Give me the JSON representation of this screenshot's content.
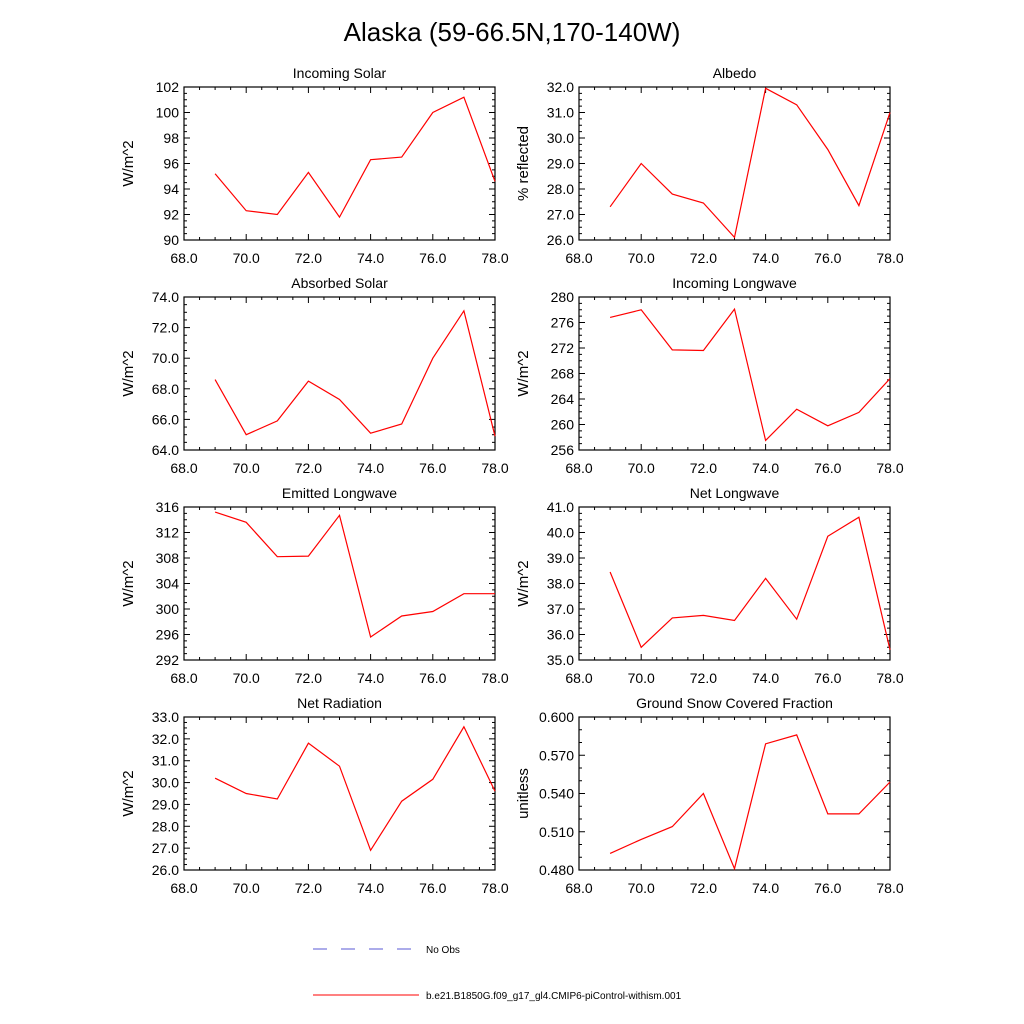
{
  "figure_title": "Alaska (59-66.5N,170-140W)",
  "legend": {
    "no_obs_label": "No Obs",
    "model_label": "b.e21.B1850G.f09_g17_gl4.CMIP6-piControl-withism.001",
    "no_obs_color": "#5a5ad6",
    "model_color": "#ff0000"
  },
  "chart_data": [
    {
      "type": "line",
      "title": "Incoming Solar",
      "ylabel": "W/m^2",
      "xlim": [
        68,
        78
      ],
      "ylim": [
        90,
        102
      ],
      "xticks": [
        "68.0",
        "70.0",
        "72.0",
        "74.0",
        "76.0",
        "78.0"
      ],
      "yticks": [
        "90",
        "92",
        "94",
        "96",
        "98",
        "100",
        "102"
      ],
      "series": [
        {
          "color": "#ff0000",
          "x": [
            69,
            70,
            71,
            72,
            73,
            74,
            75,
            76,
            77,
            78
          ],
          "y": [
            95.2,
            92.3,
            92.0,
            95.3,
            91.8,
            96.3,
            96.5,
            100.0,
            101.2,
            94.6
          ]
        }
      ]
    },
    {
      "type": "line",
      "title": "Albedo",
      "ylabel": "% reflected",
      "xlim": [
        68,
        78
      ],
      "ylim": [
        26,
        32
      ],
      "xticks": [
        "68.0",
        "70.0",
        "72.0",
        "74.0",
        "76.0",
        "78.0"
      ],
      "yticks": [
        "26.0",
        "27.0",
        "28.0",
        "29.0",
        "30.0",
        "31.0",
        "32.0"
      ],
      "series": [
        {
          "color": "#ff0000",
          "x": [
            69,
            70,
            71,
            72,
            73,
            74,
            75,
            76,
            77,
            78
          ],
          "y": [
            27.3,
            29.0,
            27.8,
            27.45,
            26.1,
            31.95,
            31.3,
            29.55,
            27.35,
            31.0
          ]
        }
      ]
    },
    {
      "type": "line",
      "title": "Absorbed Solar",
      "ylabel": "W/m^2",
      "xlim": [
        68,
        78
      ],
      "ylim": [
        64,
        74
      ],
      "xticks": [
        "68.0",
        "70.0",
        "72.0",
        "74.0",
        "76.0",
        "78.0"
      ],
      "yticks": [
        "64.0",
        "66.0",
        "68.0",
        "70.0",
        "72.0",
        "74.0"
      ],
      "series": [
        {
          "color": "#ff0000",
          "x": [
            69,
            70,
            71,
            72,
            73,
            74,
            75,
            76,
            77,
            78
          ],
          "y": [
            68.6,
            65.0,
            65.9,
            68.5,
            67.3,
            65.1,
            65.7,
            70.0,
            73.1,
            64.9
          ]
        }
      ]
    },
    {
      "type": "line",
      "title": "Incoming Longwave",
      "ylabel": "W/m^2",
      "xlim": [
        68,
        78
      ],
      "ylim": [
        256,
        280
      ],
      "xticks": [
        "68.0",
        "70.0",
        "72.0",
        "74.0",
        "76.0",
        "78.0"
      ],
      "yticks": [
        "256",
        "260",
        "264",
        "268",
        "272",
        "276",
        "280"
      ],
      "series": [
        {
          "color": "#ff0000",
          "x": [
            69,
            70,
            71,
            72,
            73,
            74,
            75,
            76,
            77,
            78
          ],
          "y": [
            276.8,
            278.0,
            271.7,
            271.6,
            278.1,
            257.5,
            262.4,
            259.8,
            261.9,
            267.2
          ]
        }
      ]
    },
    {
      "type": "line",
      "title": "Emitted Longwave",
      "ylabel": "W/m^2",
      "xlim": [
        68,
        78
      ],
      "ylim": [
        292,
        316
      ],
      "xticks": [
        "68.0",
        "70.0",
        "72.0",
        "74.0",
        "76.0",
        "78.0"
      ],
      "yticks": [
        "292",
        "296",
        "300",
        "304",
        "308",
        "312",
        "316"
      ],
      "series": [
        {
          "color": "#ff0000",
          "x": [
            69,
            70,
            71,
            72,
            73,
            74,
            75,
            76,
            77,
            78
          ],
          "y": [
            315.2,
            313.6,
            308.2,
            308.3,
            314.7,
            295.6,
            298.9,
            299.6,
            302.4,
            302.4
          ]
        }
      ]
    },
    {
      "type": "line",
      "title": "Net Longwave",
      "ylabel": "W/m^2",
      "xlim": [
        68,
        78
      ],
      "ylim": [
        35,
        41
      ],
      "xticks": [
        "68.0",
        "70.0",
        "72.0",
        "74.0",
        "76.0",
        "78.0"
      ],
      "yticks": [
        "35.0",
        "36.0",
        "37.0",
        "38.0",
        "39.0",
        "40.0",
        "41.0"
      ],
      "series": [
        {
          "color": "#ff0000",
          "x": [
            69,
            70,
            71,
            72,
            73,
            74,
            75,
            76,
            77,
            78
          ],
          "y": [
            38.45,
            35.5,
            36.65,
            36.75,
            36.55,
            38.2,
            36.6,
            39.85,
            40.6,
            35.4
          ]
        }
      ]
    },
    {
      "type": "line",
      "title": "Net Radiation",
      "ylabel": "W/m^2",
      "xlim": [
        68,
        78
      ],
      "ylim": [
        26,
        33
      ],
      "xticks": [
        "68.0",
        "70.0",
        "72.0",
        "74.0",
        "76.0",
        "78.0"
      ],
      "yticks": [
        "26.0",
        "27.0",
        "28.0",
        "29.0",
        "30.0",
        "31.0",
        "32.0",
        "33.0"
      ],
      "series": [
        {
          "color": "#ff0000",
          "x": [
            69,
            70,
            71,
            72,
            73,
            74,
            75,
            76,
            77,
            78
          ],
          "y": [
            30.2,
            29.5,
            29.25,
            31.8,
            30.75,
            26.9,
            29.15,
            30.15,
            32.55,
            29.6
          ]
        }
      ]
    },
    {
      "type": "line",
      "title": "Ground Snow Covered Fraction",
      "ylabel": "unitless",
      "xlim": [
        68,
        78
      ],
      "ylim": [
        0.48,
        0.6
      ],
      "xticks": [
        "68.0",
        "70.0",
        "72.0",
        "74.0",
        "76.0",
        "78.0"
      ],
      "yticks": [
        "0.480",
        "0.510",
        "0.540",
        "0.570",
        "0.600"
      ],
      "series": [
        {
          "color": "#ff0000",
          "x": [
            69,
            70,
            71,
            72,
            73,
            74,
            75,
            76,
            77,
            78
          ],
          "y": [
            0.493,
            0.504,
            0.514,
            0.54,
            0.481,
            0.579,
            0.586,
            0.524,
            0.524,
            0.549
          ]
        }
      ]
    }
  ]
}
